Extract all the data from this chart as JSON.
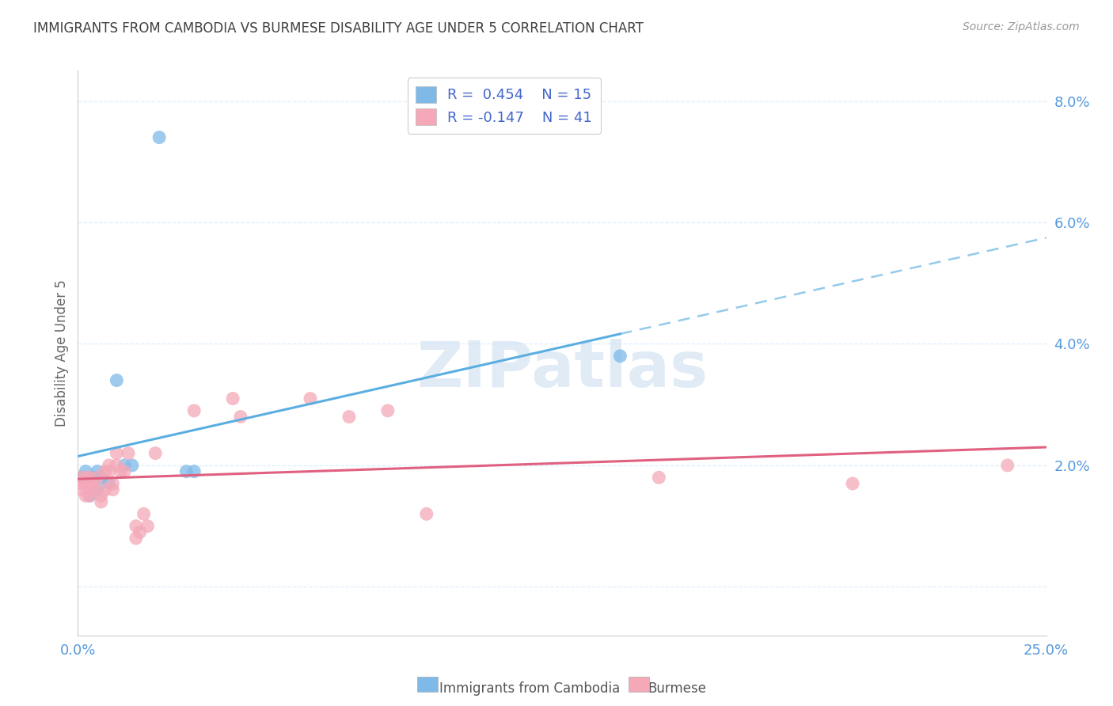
{
  "title": "IMMIGRANTS FROM CAMBODIA VS BURMESE DISABILITY AGE UNDER 5 CORRELATION CHART",
  "source": "Source: ZipAtlas.com",
  "ylabel_label": "Disability Age Under 5",
  "xlim": [
    0.0,
    0.25
  ],
  "ylim": [
    -0.008,
    0.085
  ],
  "xticks": [
    0.0,
    0.05,
    0.1,
    0.15,
    0.2,
    0.25
  ],
  "xtick_labels": [
    "0.0%",
    "",
    "",
    "",
    "",
    "25.0%"
  ],
  "yticks": [
    0.0,
    0.02,
    0.04,
    0.06,
    0.08
  ],
  "ytick_labels": [
    "",
    "2.0%",
    "4.0%",
    "6.0%",
    "8.0%"
  ],
  "cambodia_color": "#7EB9E8",
  "burmese_color": "#F4A8B8",
  "legend_label_cambodia": "R =  0.454    N = 15",
  "legend_label_burmese": "R = -0.147    N = 41",
  "watermark": "ZIPatlas",
  "background_color": "#ffffff",
  "cambodia_scatter": [
    [
      0.001,
      0.018
    ],
    [
      0.002,
      0.019
    ],
    [
      0.003,
      0.015
    ],
    [
      0.004,
      0.018
    ],
    [
      0.005,
      0.016
    ],
    [
      0.005,
      0.019
    ],
    [
      0.006,
      0.018
    ],
    [
      0.008,
      0.017
    ],
    [
      0.01,
      0.034
    ],
    [
      0.012,
      0.02
    ],
    [
      0.014,
      0.02
    ],
    [
      0.021,
      0.074
    ],
    [
      0.028,
      0.019
    ],
    [
      0.03,
      0.019
    ],
    [
      0.14,
      0.038
    ]
  ],
  "burmese_scatter": [
    [
      0.001,
      0.017
    ],
    [
      0.001,
      0.018
    ],
    [
      0.001,
      0.016
    ],
    [
      0.002,
      0.017
    ],
    [
      0.002,
      0.015
    ],
    [
      0.002,
      0.018
    ],
    [
      0.003,
      0.015
    ],
    [
      0.003,
      0.018
    ],
    [
      0.003,
      0.017
    ],
    [
      0.004,
      0.016
    ],
    [
      0.004,
      0.017
    ],
    [
      0.005,
      0.018
    ],
    [
      0.006,
      0.015
    ],
    [
      0.006,
      0.014
    ],
    [
      0.007,
      0.019
    ],
    [
      0.007,
      0.016
    ],
    [
      0.008,
      0.019
    ],
    [
      0.008,
      0.02
    ],
    [
      0.009,
      0.017
    ],
    [
      0.009,
      0.016
    ],
    [
      0.01,
      0.02
    ],
    [
      0.01,
      0.022
    ],
    [
      0.011,
      0.019
    ],
    [
      0.012,
      0.019
    ],
    [
      0.013,
      0.022
    ],
    [
      0.015,
      0.01
    ],
    [
      0.015,
      0.008
    ],
    [
      0.016,
      0.009
    ],
    [
      0.017,
      0.012
    ],
    [
      0.018,
      0.01
    ],
    [
      0.02,
      0.022
    ],
    [
      0.03,
      0.029
    ],
    [
      0.04,
      0.031
    ],
    [
      0.042,
      0.028
    ],
    [
      0.06,
      0.031
    ],
    [
      0.07,
      0.028
    ],
    [
      0.08,
      0.029
    ],
    [
      0.09,
      0.012
    ],
    [
      0.15,
      0.018
    ],
    [
      0.2,
      0.017
    ],
    [
      0.24,
      0.02
    ]
  ],
  "trend_color_cambodia": "#5BAEE0",
  "trend_color_burmese": "#E06080",
  "grid_color": "#DDEEFF",
  "title_color": "#404040",
  "axis_label_color": "#5599DD",
  "bottom_legend_cambodia": "Immigrants from Cambodia",
  "bottom_legend_burmese": "Burmese"
}
